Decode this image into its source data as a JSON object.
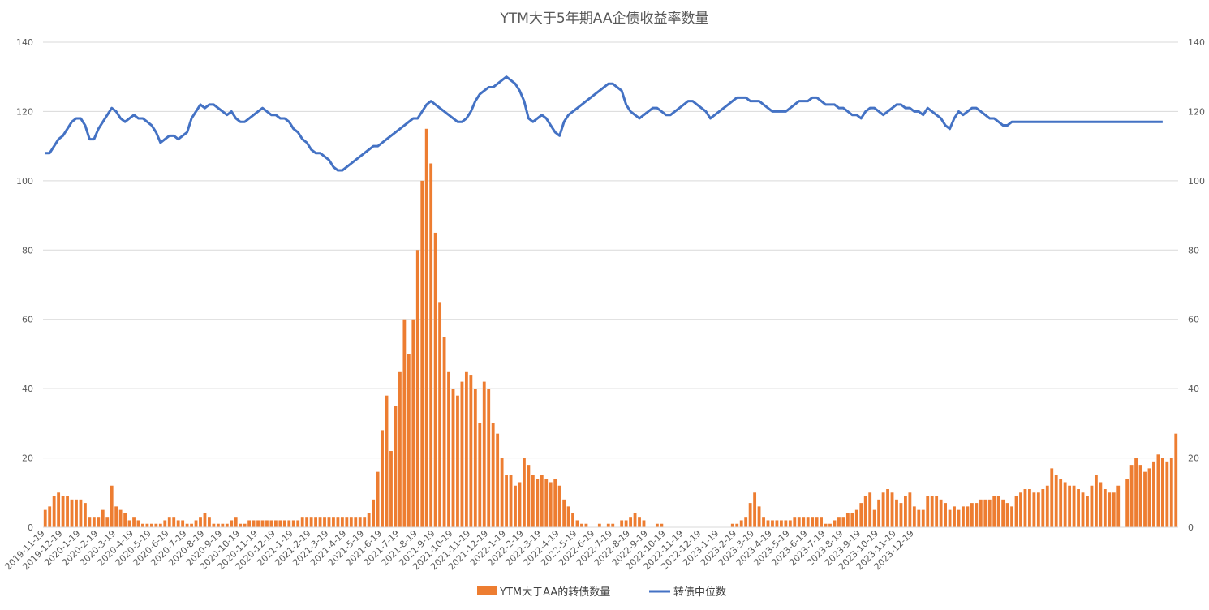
{
  "chart_data": {
    "type": "bar+line",
    "title": "YTM大于5年期AA企债收益率数量",
    "y_left": {
      "min": 0,
      "max": 140,
      "ticks": [
        0,
        20,
        40,
        60,
        80,
        100,
        120,
        140
      ]
    },
    "y_right": {
      "min": 0,
      "max": 140,
      "ticks": [
        0,
        20,
        40,
        60,
        80,
        100,
        120,
        140
      ]
    },
    "grid": true,
    "x_start": "2019-11-19",
    "x_labels": [
      "2019-11-19",
      "2019-12-19",
      "2020-1-19",
      "2020-2-19",
      "2020-3-19",
      "2020-4-19",
      "2020-5-19",
      "2020-6-19",
      "2020-7-19",
      "2020-8-19",
      "2020-9-19",
      "2020-10-19",
      "2020-11-19",
      "2020-12-19",
      "2021-1-19",
      "2021-2-19",
      "2021-3-19",
      "2021-4-19",
      "2021-5-19",
      "2021-6-19",
      "2021-7-19",
      "2021-8-19",
      "2021-9-19",
      "2021-10-19",
      "2021-11-19",
      "2021-12-19",
      "2022-1-19",
      "2022-2-19",
      "2022-3-19",
      "2022-4-19",
      "2022-5-19",
      "2022-6-19",
      "2022-7-19",
      "2022-8-19",
      "2022-9-19",
      "2022-10-19",
      "2022-11-19",
      "2022-12-19",
      "2023-1-19",
      "2023-2-19",
      "2023-3-19",
      "2023-4-19",
      "2023-5-19",
      "2023-6-19",
      "2023-7-19",
      "2023-8-19",
      "2023-9-19",
      "2023-10-19",
      "2023-11-19",
      "2023-12-19"
    ],
    "series": [
      {
        "name": "YTM大于AA的转债数量",
        "type": "bar",
        "axis": "left",
        "color": "#ED7D31",
        "points_per_label": 4,
        "values": [
          5,
          6,
          9,
          10,
          9,
          9,
          8,
          8,
          8,
          7,
          3,
          3,
          3,
          5,
          3,
          12,
          6,
          5,
          4,
          2,
          3,
          2,
          1,
          1,
          1,
          1,
          1,
          2,
          3,
          3,
          2,
          2,
          1,
          1,
          2,
          3,
          4,
          3,
          1,
          1,
          1,
          1,
          2,
          3,
          1,
          1,
          2,
          2,
          2,
          2,
          2,
          2,
          2,
          2,
          2,
          2,
          2,
          2,
          3,
          3,
          3,
          3,
          3,
          3,
          3,
          3,
          3,
          3,
          3,
          3,
          3,
          3,
          3,
          4,
          8,
          16,
          28,
          38,
          22,
          35,
          45,
          60,
          50,
          60,
          80,
          100,
          115,
          105,
          85,
          65,
          55,
          45,
          40,
          38,
          42,
          45,
          44,
          40,
          30,
          42,
          40,
          30,
          27,
          20,
          15,
          15,
          12,
          13,
          20,
          18,
          15,
          14,
          15,
          14,
          13,
          14,
          12,
          8,
          6,
          4,
          2,
          1,
          1,
          0,
          0,
          1,
          0,
          1,
          1,
          0,
          2,
          2,
          3,
          4,
          3,
          2,
          0,
          0,
          1,
          1,
          0,
          0,
          0,
          0,
          0,
          0,
          0,
          0,
          0,
          0,
          0,
          0,
          0,
          0,
          0,
          1,
          1,
          2,
          3,
          7,
          10,
          6,
          3,
          2,
          2,
          2,
          2,
          2,
          2,
          3,
          3,
          3,
          3,
          3,
          3,
          3,
          1,
          1,
          2,
          3,
          3,
          4,
          4,
          5,
          7,
          9,
          10,
          5,
          8,
          10,
          11,
          10,
          8,
          7,
          9,
          10,
          6,
          5,
          5,
          9,
          9,
          9,
          8,
          7,
          5,
          6,
          5,
          6,
          6,
          7,
          7,
          8,
          8,
          8,
          9,
          9,
          8,
          7,
          6,
          9,
          10,
          11,
          11,
          10,
          10,
          11,
          12,
          17,
          15,
          14,
          13,
          12,
          12,
          11,
          10,
          9,
          12,
          15,
          13,
          11,
          10,
          10,
          12,
          0,
          14,
          18,
          20,
          18,
          16,
          17,
          19,
          21,
          20,
          19,
          20,
          27
        ]
      },
      {
        "name": "转债中位数",
        "type": "line",
        "axis": "right",
        "color": "#4472C4",
        "points_per_label": 4,
        "values": [
          108,
          108,
          110,
          112,
          113,
          115,
          117,
          118,
          118,
          116,
          112,
          112,
          115,
          117,
          119,
          121,
          120,
          118,
          117,
          118,
          119,
          118,
          118,
          117,
          116,
          114,
          111,
          112,
          113,
          113,
          112,
          113,
          114,
          118,
          120,
          122,
          121,
          122,
          122,
          121,
          120,
          119,
          120,
          118,
          117,
          117,
          118,
          119,
          120,
          121,
          120,
          119,
          119,
          118,
          118,
          117,
          115,
          114,
          112,
          111,
          109,
          108,
          108,
          107,
          106,
          104,
          103,
          103,
          104,
          105,
          106,
          107,
          108,
          109,
          110,
          110,
          111,
          112,
          113,
          114,
          115,
          116,
          117,
          118,
          118,
          120,
          122,
          123,
          122,
          121,
          120,
          119,
          118,
          117,
          117,
          118,
          120,
          123,
          125,
          126,
          127,
          127,
          128,
          129,
          130,
          129,
          128,
          126,
          123,
          118,
          117,
          118,
          119,
          118,
          116,
          114,
          113,
          117,
          119,
          120,
          121,
          122,
          123,
          124,
          125,
          126,
          127,
          128,
          128,
          127,
          126,
          122,
          120,
          119,
          118,
          119,
          120,
          121,
          121,
          120,
          119,
          119,
          120,
          121,
          122,
          123,
          123,
          122,
          121,
          120,
          118,
          119,
          120,
          121,
          122,
          123,
          124,
          124,
          124,
          123,
          123,
          123,
          122,
          121,
          120,
          120,
          120,
          120,
          121,
          122,
          123,
          123,
          123,
          124,
          124,
          123,
          122,
          122,
          122,
          121,
          121,
          120,
          119,
          119,
          118,
          120,
          121,
          121,
          120,
          119,
          120,
          121,
          122,
          122,
          121,
          121,
          120,
          120,
          119,
          121,
          120,
          119,
          118,
          116,
          115,
          118,
          120,
          119,
          120,
          121,
          121,
          120,
          119,
          118,
          118,
          117,
          116,
          116,
          117,
          117,
          117,
          117,
          117,
          117,
          117,
          117,
          117,
          117,
          117,
          117,
          117,
          117,
          117,
          117,
          117,
          117,
          117,
          117,
          117,
          117,
          117,
          117,
          117,
          117,
          117,
          117,
          117,
          117,
          117,
          117,
          117,
          117,
          117
        ]
      }
    ],
    "legend": {
      "position": "bottom-center"
    }
  }
}
